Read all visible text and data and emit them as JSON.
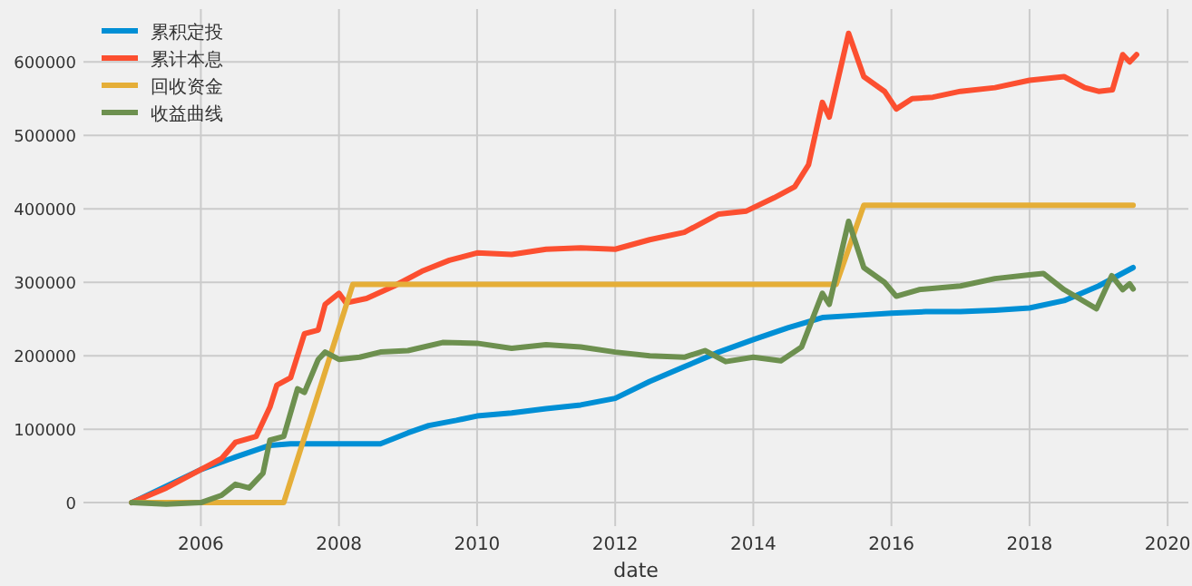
{
  "chart_data": {
    "type": "line",
    "xlabel": "date",
    "legend": "top left",
    "grid": true,
    "marker": "none",
    "line_style": "solid",
    "xlim": [
      2004.3,
      2020.3
    ],
    "ylim": [
      -32000,
      672000
    ],
    "xticks": [
      2006,
      2008,
      2010,
      2012,
      2014,
      2016,
      2018,
      2020
    ],
    "yticks": [
      0,
      100000,
      200000,
      300000,
      400000,
      500000,
      600000
    ],
    "series": [
      {
        "name": "累积定投",
        "color": "#008fd5",
        "x": [
          2005.0,
          2006.0,
          2006.5,
          2007.0,
          2007.3,
          2008.0,
          2008.6,
          2009.0,
          2009.3,
          2009.7,
          2010.0,
          2010.5,
          2011.0,
          2011.5,
          2012.0,
          2012.5,
          2013.0,
          2013.5,
          2014.0,
          2014.5,
          2015.0,
          2015.5,
          2016.0,
          2016.5,
          2017.0,
          2017.5,
          2018.0,
          2018.5,
          2019.0,
          2019.5
        ],
        "values": [
          0,
          45000,
          62000,
          78000,
          80000,
          80000,
          80000,
          95000,
          105000,
          112000,
          118000,
          122000,
          128000,
          133000,
          142000,
          165000,
          185000,
          205000,
          222000,
          238000,
          252000,
          255000,
          258000,
          260000,
          260000,
          262000,
          265000,
          275000,
          295000,
          320000
        ]
      },
      {
        "name": "累计本息",
        "color": "#fc4f30",
        "x": [
          2005.0,
          2005.5,
          2006.0,
          2006.3,
          2006.5,
          2006.8,
          2007.0,
          2007.1,
          2007.3,
          2007.5,
          2007.7,
          2007.8,
          2008.0,
          2008.1,
          2008.4,
          2008.8,
          2009.2,
          2009.6,
          2010.0,
          2010.5,
          2011.0,
          2011.5,
          2012.0,
          2012.5,
          2013.0,
          2013.5,
          2013.9,
          2014.3,
          2014.6,
          2014.8,
          2015.0,
          2015.1,
          2015.38,
          2015.6,
          2015.9,
          2016.07,
          2016.3,
          2016.6,
          2017.0,
          2017.5,
          2018.0,
          2018.5,
          2018.8,
          2019.0,
          2019.2,
          2019.35,
          2019.45,
          2019.55
        ],
        "values": [
          0,
          20000,
          45000,
          60000,
          82000,
          90000,
          130000,
          160000,
          170000,
          230000,
          235000,
          270000,
          285000,
          272000,
          278000,
          295000,
          315000,
          330000,
          340000,
          338000,
          345000,
          347000,
          345000,
          358000,
          368000,
          393000,
          397000,
          415000,
          430000,
          460000,
          545000,
          525000,
          639000,
          580000,
          560000,
          536000,
          550000,
          552000,
          560000,
          565000,
          575000,
          580000,
          565000,
          560000,
          562000,
          610000,
          600000,
          610000
        ]
      },
      {
        "name": "回收资金",
        "color": "#e5ae38",
        "x": [
          2005.0,
          2007.2,
          2008.2,
          2015.2,
          2015.6,
          2019.5
        ],
        "values": [
          0,
          0,
          297000,
          297000,
          405000,
          405000
        ]
      },
      {
        "name": "收益曲线",
        "color": "#6d904f",
        "x": [
          2005.0,
          2005.5,
          2006.0,
          2006.3,
          2006.5,
          2006.7,
          2006.9,
          2007.0,
          2007.2,
          2007.4,
          2007.5,
          2007.7,
          2007.8,
          2008.0,
          2008.3,
          2008.6,
          2009.0,
          2009.5,
          2010.0,
          2010.5,
          2011.0,
          2011.5,
          2012.0,
          2012.5,
          2013.0,
          2013.3,
          2013.6,
          2014.0,
          2014.4,
          2014.7,
          2015.0,
          2015.1,
          2015.38,
          2015.6,
          2015.9,
          2016.07,
          2016.4,
          2017.0,
          2017.5,
          2018.0,
          2018.2,
          2018.5,
          2018.97,
          2019.19,
          2019.35,
          2019.45,
          2019.5
        ],
        "values": [
          0,
          -2000,
          0,
          10000,
          25000,
          20000,
          40000,
          85000,
          90000,
          155000,
          150000,
          195000,
          205000,
          195000,
          198000,
          205000,
          207000,
          218000,
          217000,
          210000,
          215000,
          212000,
          205000,
          200000,
          198000,
          207000,
          192000,
          198000,
          193000,
          212000,
          285000,
          270000,
          383000,
          320000,
          300000,
          281000,
          290000,
          295000,
          305000,
          310000,
          312000,
          290000,
          264000,
          309000,
          290000,
          298000,
          291000
        ]
      }
    ]
  }
}
